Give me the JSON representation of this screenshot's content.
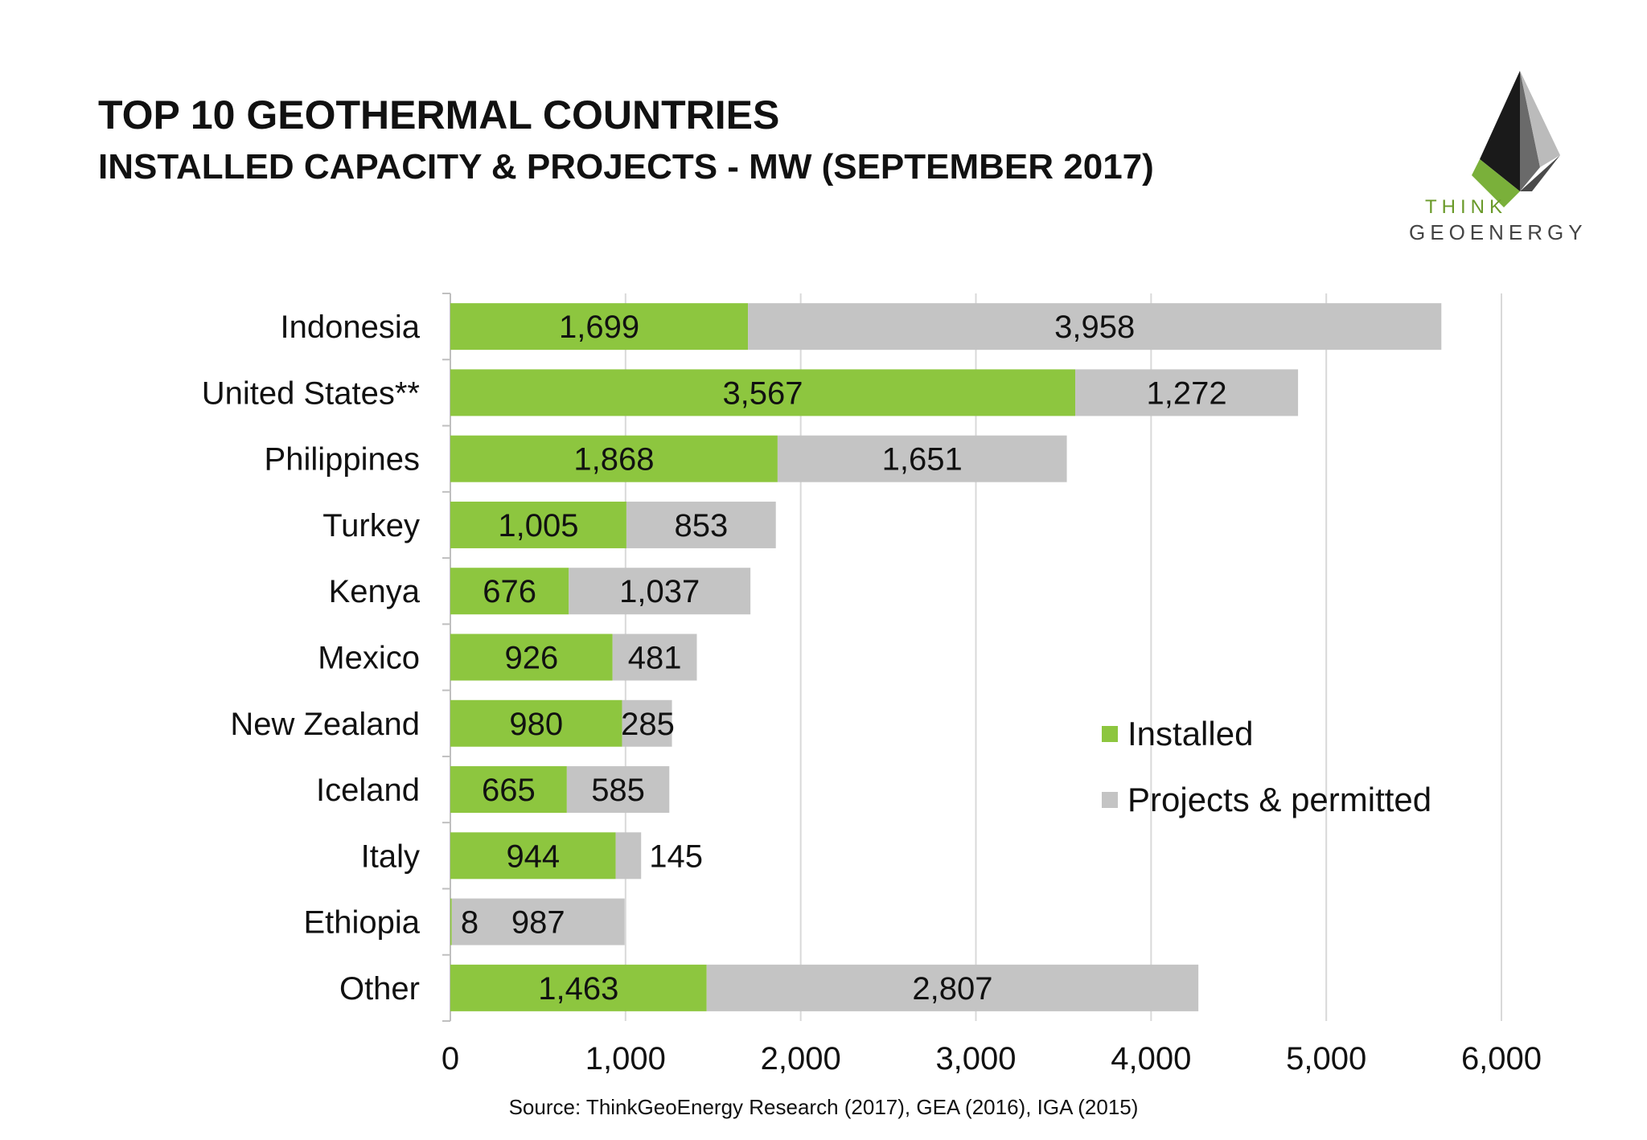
{
  "header": {
    "title": "TOP 10 GEOTHERMAL COUNTRIES",
    "subtitle": "INSTALLED CAPACITY & PROJECTS - MW (SEPTEMBER 2017)"
  },
  "logo": {
    "line1": "THINK",
    "line2": "GEOENERGY",
    "icon": "pyramid-logo-icon"
  },
  "chart_data": {
    "type": "bar",
    "orientation": "horizontal",
    "stacked": true,
    "title": "TOP 10 GEOTHERMAL COUNTRIES",
    "subtitle": "INSTALLED CAPACITY & PROJECTS - MW (SEPTEMBER 2017)",
    "xlabel": "",
    "ylabel": "",
    "xlim": [
      0,
      6000
    ],
    "x_ticks": [
      "0",
      "1,000",
      "2,000",
      "3,000",
      "4,000",
      "5,000",
      "6,000"
    ],
    "grid": true,
    "legend_position": "right",
    "categories": [
      "Indonesia",
      "United States**",
      "Philippines",
      "Turkey",
      "Kenya",
      "Mexico",
      "New Zealand",
      "Iceland",
      "Italy",
      "Ethiopia",
      "Other"
    ],
    "series": [
      {
        "name": "Installed",
        "color": "#8dc63f",
        "values": [
          1699,
          3567,
          1868,
          1005,
          676,
          926,
          980,
          665,
          944,
          8,
          1463
        ],
        "labels": [
          "1,699",
          "3,567",
          "1,868",
          "1,005",
          "676",
          "926",
          "980",
          "665",
          "944",
          "8",
          "1,463"
        ]
      },
      {
        "name": "Projects & permitted",
        "color": "#c4c4c4",
        "values": [
          3958,
          1272,
          1651,
          853,
          1037,
          481,
          285,
          585,
          145,
          987,
          2807
        ],
        "labels": [
          "3,958",
          "1,272",
          "1,651",
          "853",
          "1,037",
          "481",
          "285",
          "585",
          "145",
          "987",
          "2,807"
        ]
      }
    ]
  },
  "source": "Source: ThinkGeoEnergy Research (2017), GEA (2016), IGA (2015)"
}
